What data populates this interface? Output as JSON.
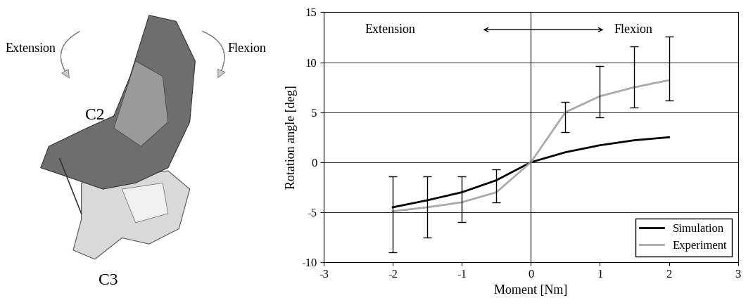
{
  "chart_data": {
    "type": "line",
    "x_label": "Moment [Nm]",
    "y_label": "Rotation angle [deg]",
    "annotations": [
      "Extension",
      "Flexion"
    ],
    "x": [
      -2,
      -1.5,
      -1,
      -0.5,
      0,
      0.5,
      1,
      1.5,
      2
    ],
    "series": [
      {
        "name": "Simulation",
        "color": "#000000",
        "values": [
          -4.5,
          -3.8,
          -3.0,
          -1.8,
          0,
          1.0,
          1.7,
          2.2,
          2.5
        ]
      },
      {
        "name": "Experiment",
        "color": "#aaaaaa",
        "values": [
          -4.9,
          -4.5,
          -4.0,
          -3.0,
          0,
          5.0,
          6.6,
          7.5,
          8.2
        ],
        "error_low": [
          -9.0,
          -7.5,
          -6.0,
          -4.0,
          null,
          3.0,
          4.5,
          5.5,
          6.2
        ],
        "error_high": [
          -1.4,
          -1.4,
          -1.4,
          -0.7,
          null,
          6.0,
          9.6,
          11.6,
          12.6
        ]
      }
    ],
    "xlim": [
      -3,
      3
    ],
    "xticks": [
      -3,
      -2,
      -1,
      0,
      1,
      2,
      3
    ],
    "ylim": [
      -10,
      15
    ],
    "yticks": [
      -10,
      -5,
      0,
      5,
      10,
      15
    ],
    "grid": true,
    "legend": "lower right"
  },
  "diagram": {
    "left_arrow": "Extension",
    "right_arrow": "Flexion",
    "upper_vertebra": "C2",
    "lower_vertebra": "C3"
  }
}
